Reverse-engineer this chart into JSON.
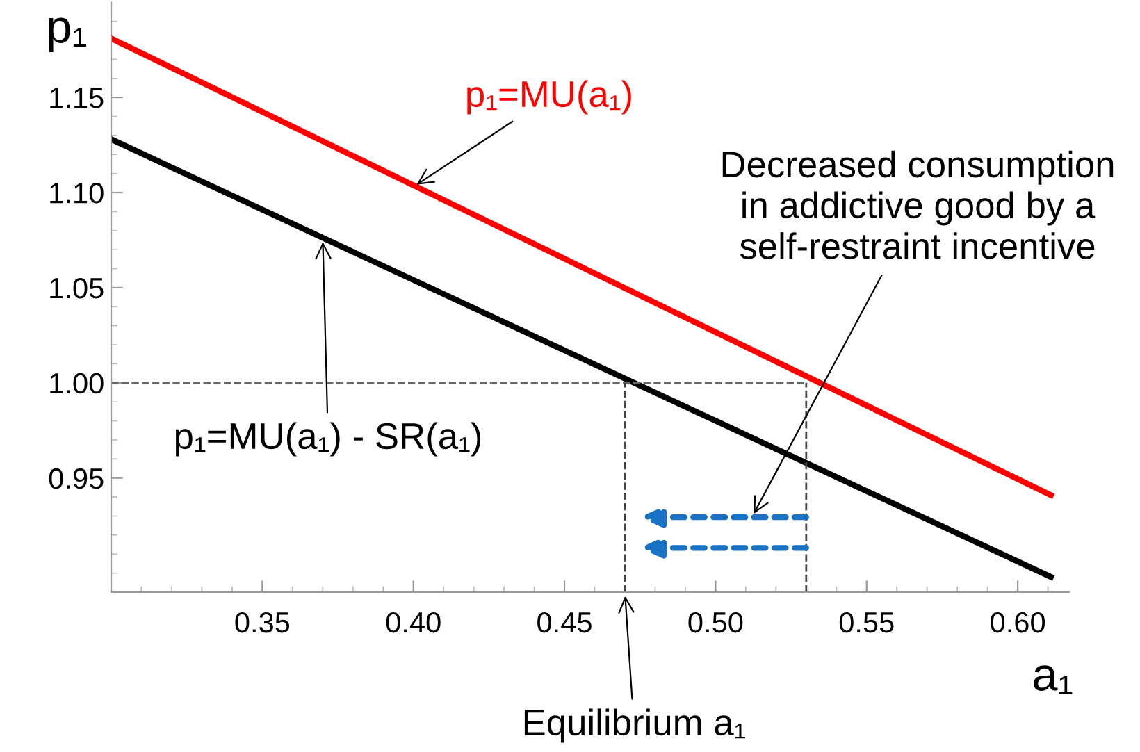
{
  "chart_data": {
    "type": "line",
    "xlabel": "a₁",
    "ylabel": "p₁",
    "x": [
      0.3,
      0.611
    ],
    "series": [
      {
        "color": "#ff0000",
        "values": [
          1.181,
          0.941
        ]
      },
      {
        "color": "#000000",
        "values": [
          1.128,
          0.898
        ]
      }
    ],
    "xlim": [
      0.3,
      0.617
    ],
    "ylim": [
      0.89,
      1.2
    ],
    "xticks": [
      0.35,
      {
        "value": 0.4,
        "label": "0.40"
      },
      0.45,
      {
        "value": 0.5,
        "label": "0.50"
      },
      0.55,
      {
        "value": 0.6,
        "label": "0.60"
      }
    ],
    "yticks": [
      0.95,
      {
        "value": 1.0,
        "label": "1.00"
      },
      1.05,
      {
        "value": 1.1,
        "label": "1.10"
      },
      1.15
    ],
    "ref_lines": [
      {
        "axis": "y",
        "value": 1.0,
        "color": "#666666",
        "line_style": "dashed"
      },
      {
        "axis": "x",
        "value": 0.47,
        "color": "#444444",
        "line_style": "dashed"
      },
      {
        "axis": "x",
        "value": 0.53,
        "color": "#444444",
        "line_style": "dashed"
      }
    ],
    "annotations": [
      {
        "text": "p₁=MU(a₁)",
        "x": 0.4,
        "y": 1.103
      },
      {
        "text": "p₁=MU(a₁) - SR(a₁)",
        "x": 0.37,
        "y": 1.076
      },
      "Decreased consumption\nin addictive good by a\nself-restraint incentive",
      {
        "text": "Equilibrium a₁",
        "x": 0.47,
        "y": 0.89
      }
    ],
    "grid": false,
    "legend": false,
    "marker": "none",
    "line_style": "solid"
  }
}
